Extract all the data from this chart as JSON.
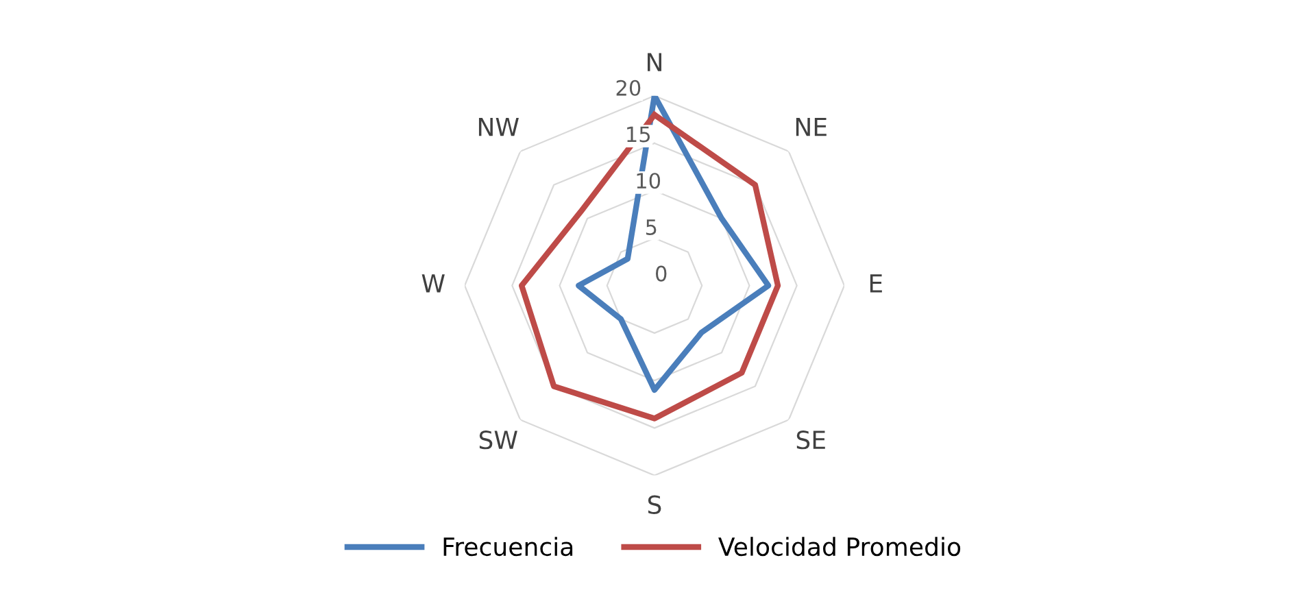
{
  "chart_data": {
    "type": "radar",
    "categories": [
      "N",
      "NE",
      "E",
      "SE",
      "S",
      "SW",
      "W",
      "NW"
    ],
    "series": [
      {
        "name": "Frecuencia",
        "color": "#4a7ebb",
        "values": [
          20,
          10,
          12,
          7,
          11,
          5,
          8,
          4
        ]
      },
      {
        "name": "Velocidad Promedio",
        "color": "#be4b48",
        "values": [
          18,
          15,
          13,
          13,
          14,
          15,
          14,
          11
        ]
      }
    ],
    "ylim": [
      0,
      20
    ],
    "yticks": [
      0,
      5,
      10,
      15,
      20
    ],
    "grid": true,
    "legend": "bottom"
  }
}
